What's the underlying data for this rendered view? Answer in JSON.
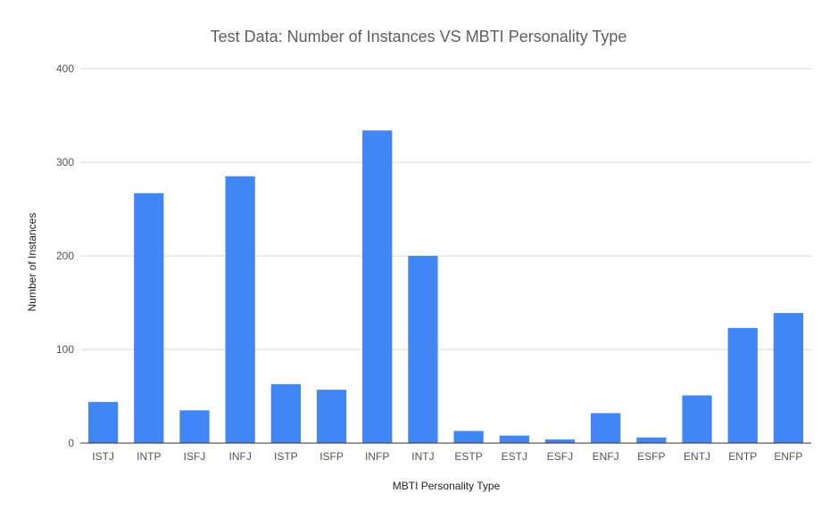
{
  "chart_data": {
    "type": "bar",
    "title": "Test Data: Number of Instances VS MBTI Personality Type",
    "xlabel": "MBTI Personality Type",
    "ylabel": "Number of Instances",
    "categories": [
      "ISTJ",
      "INTP",
      "ISFJ",
      "INFJ",
      "ISTP",
      "ISFP",
      "INFP",
      "INTJ",
      "ESTP",
      "ESTJ",
      "ESFJ",
      "ENFJ",
      "ESFP",
      "ENTJ",
      "ENTP",
      "ENFP"
    ],
    "values": [
      44,
      267,
      35,
      285,
      63,
      57,
      334,
      200,
      13,
      8,
      4,
      32,
      6,
      51,
      123,
      139
    ],
    "ylim": [
      0,
      400
    ],
    "yticks": [
      0,
      100,
      200,
      300,
      400
    ],
    "bar_color": "#4285f4",
    "grid": true,
    "legend": "none"
  }
}
